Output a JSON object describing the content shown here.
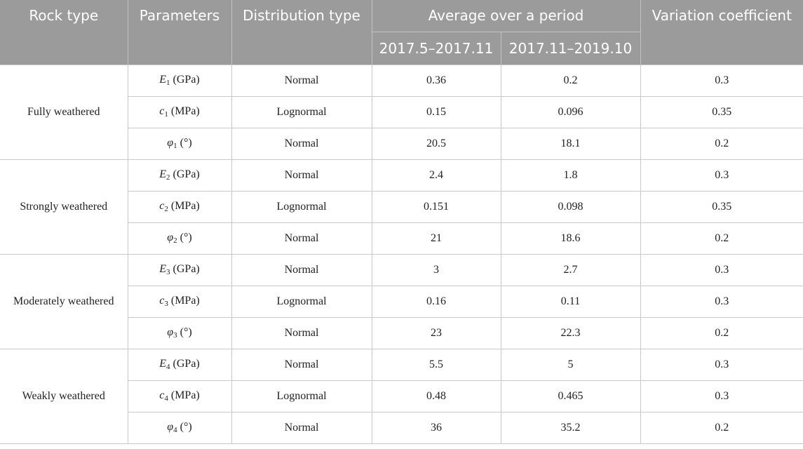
{
  "headers": {
    "rock_type": "Rock type",
    "parameters": "Parameters",
    "distribution_type": "Distribution type",
    "average_over_period": "Average over a period",
    "period1": "2017.5–2017.11",
    "period2": "2017.11–2019.10",
    "variation_coefficient": "Variation coefficient"
  },
  "groups": [
    {
      "rock_type": "Fully weathered",
      "rows": [
        {
          "symbol": "E",
          "sub": "1",
          "unit": " (GPa)",
          "distribution": "Normal",
          "avg1": "0.36",
          "avg2": "0.2",
          "cv": "0.3"
        },
        {
          "symbol": "c",
          "sub": "1",
          "unit": " (MPa)",
          "distribution": "Lognormal",
          "avg1": "0.15",
          "avg2": "0.096",
          "cv": "0.35"
        },
        {
          "symbol": "φ",
          "sub": "1",
          "unit": " (°)",
          "distribution": "Normal",
          "avg1": "20.5",
          "avg2": "18.1",
          "cv": "0.2"
        }
      ]
    },
    {
      "rock_type": "Strongly weathered",
      "rows": [
        {
          "symbol": "E",
          "sub": "2",
          "unit": " (GPa)",
          "distribution": "Normal",
          "avg1": "2.4",
          "avg2": "1.8",
          "cv": "0.3"
        },
        {
          "symbol": "c",
          "sub": "2",
          "unit": " (MPa)",
          "distribution": "Lognormal",
          "avg1": "0.151",
          "avg2": "0.098",
          "cv": "0.35"
        },
        {
          "symbol": "φ",
          "sub": "2",
          "unit": " (°)",
          "distribution": "Normal",
          "avg1": "21",
          "avg2": "18.6",
          "cv": "0.2"
        }
      ]
    },
    {
      "rock_type": "Moderately weathered",
      "rows": [
        {
          "symbol": "E",
          "sub": "3",
          "unit": " (GPa)",
          "distribution": "Normal",
          "avg1": "3",
          "avg2": "2.7",
          "cv": "0.3"
        },
        {
          "symbol": "c",
          "sub": "3",
          "unit": " (MPa)",
          "distribution": "Lognormal",
          "avg1": "0.16",
          "avg2": "0.11",
          "cv": "0.3"
        },
        {
          "symbol": "φ",
          "sub": "3",
          "unit": " (°)",
          "distribution": "Normal",
          "avg1": "23",
          "avg2": "22.3",
          "cv": "0.2"
        }
      ]
    },
    {
      "rock_type": "Weakly weathered",
      "rows": [
        {
          "symbol": "E",
          "sub": "4",
          "unit": " (GPa)",
          "distribution": "Normal",
          "avg1": "5.5",
          "avg2": "5",
          "cv": "0.3"
        },
        {
          "symbol": "c",
          "sub": "4",
          "unit": " (MPa)",
          "distribution": "Lognormal",
          "avg1": "0.48",
          "avg2": "0.465",
          "cv": "0.3"
        },
        {
          "symbol": "φ",
          "sub": "4",
          "unit": " (°)",
          "distribution": "Normal",
          "avg1": "36",
          "avg2": "35.2",
          "cv": "0.2"
        }
      ]
    }
  ]
}
